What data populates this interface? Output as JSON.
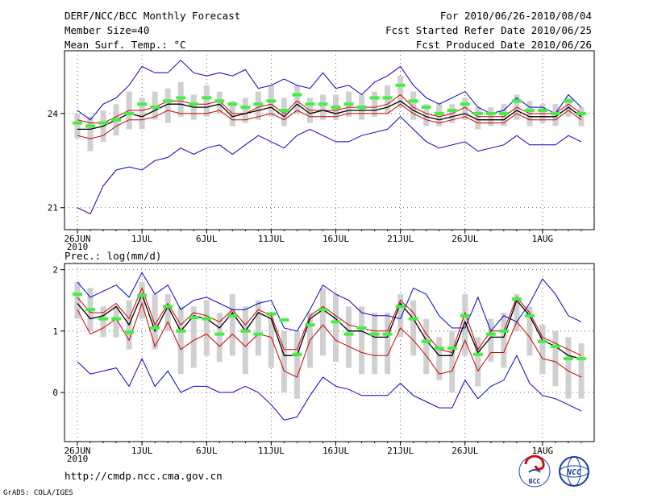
{
  "header": {
    "title": "DERF/NCC/BCC Monthly Forecast",
    "member_size": "Member Size=40",
    "variable": "Mean Surf. Temp.: °C",
    "period": "For 2010/06/26-2010/08/04",
    "started": "Fcst Started Refer Date 2010/06/25",
    "produced": "Fcst Produced Date 2010/06/26"
  },
  "footer": {
    "url": "http://cmdp.ncc.cma.gov.cn",
    "credit": "GrADS: COLA/IGES",
    "logo_bcc": "BCC",
    "logo_ncc": "NCC"
  },
  "colors": {
    "mean": "#000000",
    "upper": "#0000cc",
    "lower": "#0000cc",
    "lower_mid": "#cc0000",
    "upper_mid": "#cc0000",
    "box": "#d0d0d0",
    "marker": "#44ee44"
  },
  "chart_data": [
    {
      "type": "line",
      "title": "Mean Surf. Temp.: °C",
      "ylim": [
        20.3,
        26.0
      ],
      "yticks": [
        21,
        24
      ],
      "ytick_labels": [
        "21",
        "24"
      ],
      "day_count": 40,
      "xtick_labels": [
        {
          "day": 0,
          "label": "26JUN",
          "sub": "2010"
        },
        {
          "day": 5,
          "label": "1JUL"
        },
        {
          "day": 10,
          "label": "6JUL"
        },
        {
          "day": 15,
          "label": "11JUL"
        },
        {
          "day": 20,
          "label": "16JUL"
        },
        {
          "day": 25,
          "label": "21JUL"
        },
        {
          "day": 30,
          "label": "26JUL"
        },
        {
          "day": 36,
          "label": "1AUG"
        }
      ],
      "series": [
        {
          "name": "max",
          "color_key": "upper",
          "values": [
            24.1,
            23.8,
            24.3,
            24.5,
            24.9,
            25.5,
            25.3,
            25.3,
            25.7,
            25.3,
            25.2,
            25.3,
            25.2,
            25.4,
            24.8,
            24.9,
            25.1,
            24.9,
            24.8,
            25.3,
            24.8,
            24.9,
            24.6,
            25.0,
            25.2,
            25.5,
            24.9,
            24.5,
            24.3,
            24.5,
            24.7,
            24.2,
            24.0,
            24.1,
            24.5,
            24.2,
            24.2,
            24.0,
            24.6,
            24.2
          ]
        },
        {
          "name": "upper_mid",
          "color_key": "upper_mid",
          "values": [
            23.8,
            23.7,
            23.7,
            23.9,
            24.1,
            24.1,
            24.2,
            24.4,
            24.4,
            24.3,
            24.3,
            24.4,
            24.0,
            24.0,
            24.2,
            24.3,
            24.0,
            24.4,
            24.1,
            24.1,
            24.1,
            24.2,
            24.2,
            24.2,
            24.3,
            24.6,
            24.2,
            24.0,
            23.9,
            24.0,
            24.2,
            23.9,
            23.9,
            23.9,
            24.2,
            24.0,
            24.0,
            24.0,
            24.3,
            24.0
          ]
        },
        {
          "name": "mean",
          "color_key": "mean",
          "values": [
            23.5,
            23.5,
            23.6,
            23.8,
            24.0,
            23.9,
            24.1,
            24.3,
            24.3,
            24.2,
            24.2,
            24.3,
            23.9,
            24.0,
            24.1,
            24.2,
            23.9,
            24.3,
            24.0,
            24.1,
            24.0,
            24.1,
            24.1,
            24.1,
            24.2,
            24.4,
            24.1,
            23.9,
            23.8,
            23.9,
            24.0,
            23.8,
            23.8,
            23.8,
            24.1,
            23.9,
            23.9,
            23.9,
            24.2,
            23.9
          ]
        },
        {
          "name": "lower_mid",
          "color_key": "lower_mid",
          "values": [
            23.3,
            23.2,
            23.3,
            23.6,
            23.8,
            23.8,
            23.9,
            24.1,
            24.0,
            24.0,
            24.0,
            24.1,
            23.8,
            23.8,
            23.9,
            24.0,
            23.8,
            24.1,
            23.9,
            23.9,
            23.9,
            24.0,
            24.0,
            24.0,
            24.0,
            24.3,
            24.0,
            23.8,
            23.7,
            23.8,
            23.9,
            23.7,
            23.7,
            23.7,
            24.0,
            23.8,
            23.8,
            23.8,
            24.1,
            23.8
          ]
        },
        {
          "name": "min",
          "color_key": "lower",
          "values": [
            21.0,
            20.8,
            21.7,
            22.2,
            22.3,
            22.2,
            22.5,
            22.6,
            22.9,
            22.7,
            22.9,
            23.0,
            22.7,
            23.0,
            23.3,
            23.1,
            22.9,
            23.3,
            23.5,
            23.3,
            23.1,
            23.1,
            23.3,
            23.4,
            23.5,
            23.9,
            23.5,
            23.1,
            22.9,
            23.0,
            23.1,
            22.8,
            22.9,
            23.0,
            23.3,
            23.0,
            23.0,
            23.0,
            23.3,
            23.1
          ]
        }
      ],
      "markers": [
        23.7,
        23.6,
        23.7,
        23.8,
        24.0,
        24.3,
        24.2,
        24.4,
        24.5,
        24.3,
        24.5,
        24.4,
        24.3,
        24.2,
        24.3,
        24.4,
        24.1,
        24.6,
        24.3,
        24.3,
        24.2,
        24.3,
        24.2,
        24.5,
        24.5,
        24.9,
        24.4,
        24.2,
        24.0,
        24.1,
        24.3,
        24.0,
        24.0,
        24.0,
        24.4,
        24.1,
        24.1,
        24.0,
        24.4,
        24.0
      ],
      "boxes": [
        [
          23.2,
          24.0
        ],
        [
          22.8,
          23.9
        ],
        [
          23.1,
          24.1
        ],
        [
          23.3,
          24.3
        ],
        [
          23.5,
          24.7
        ],
        [
          23.5,
          24.5
        ],
        [
          23.8,
          24.7
        ],
        [
          23.7,
          24.8
        ],
        [
          23.9,
          25.0
        ],
        [
          23.8,
          24.6
        ],
        [
          23.9,
          24.9
        ],
        [
          24.0,
          24.7
        ],
        [
          23.6,
          24.4
        ],
        [
          23.7,
          24.5
        ],
        [
          23.8,
          24.7
        ],
        [
          23.9,
          24.9
        ],
        [
          23.6,
          24.5
        ],
        [
          24.0,
          24.9
        ],
        [
          23.7,
          24.5
        ],
        [
          23.8,
          24.6
        ],
        [
          23.8,
          24.6
        ],
        [
          23.9,
          24.7
        ],
        [
          23.8,
          24.6
        ],
        [
          23.9,
          24.7
        ],
        [
          24.0,
          24.9
        ],
        [
          24.2,
          25.2
        ],
        [
          23.8,
          24.7
        ],
        [
          23.6,
          24.3
        ],
        [
          23.6,
          24.3
        ],
        [
          23.7,
          24.3
        ],
        [
          23.8,
          24.5
        ],
        [
          23.5,
          24.2
        ],
        [
          23.6,
          24.2
        ],
        [
          23.6,
          24.3
        ],
        [
          23.8,
          24.6
        ],
        [
          23.6,
          24.4
        ],
        [
          23.7,
          24.3
        ],
        [
          23.6,
          24.3
        ],
        [
          23.9,
          24.5
        ],
        [
          23.6,
          24.2
        ]
      ]
    },
    {
      "type": "line",
      "title": "Prec.: log(mm/d)",
      "ylim": [
        -0.8,
        2.1
      ],
      "yticks": [
        0,
        1,
        2
      ],
      "ytick_labels": [
        "0",
        "1",
        "2"
      ],
      "day_count": 40,
      "xtick_labels": [
        {
          "day": 0,
          "label": "26JUN",
          "sub": "2010"
        },
        {
          "day": 5,
          "label": "1JUL"
        },
        {
          "day": 10,
          "label": "6JUL"
        },
        {
          "day": 15,
          "label": "11JUL"
        },
        {
          "day": 20,
          "label": "16JUL"
        },
        {
          "day": 25,
          "label": "21JUL"
        },
        {
          "day": 30,
          "label": "26JUL"
        },
        {
          "day": 36,
          "label": "1AUG"
        }
      ],
      "series": [
        {
          "name": "max",
          "color_key": "upper",
          "values": [
            1.8,
            1.55,
            1.65,
            1.75,
            1.55,
            1.95,
            1.6,
            1.75,
            1.35,
            1.5,
            1.55,
            1.45,
            1.35,
            1.35,
            1.45,
            1.5,
            1.05,
            1.0,
            1.35,
            1.75,
            1.6,
            1.5,
            1.3,
            1.25,
            1.25,
            1.2,
            1.7,
            1.6,
            1.25,
            1.05,
            1.05,
            1.55,
            1.0,
            1.25,
            1.15,
            1.45,
            1.85,
            1.6,
            1.25,
            1.15
          ]
        },
        {
          "name": "upper_mid",
          "color_key": "upper_mid",
          "values": [
            1.55,
            1.3,
            1.3,
            1.45,
            1.2,
            1.7,
            1.1,
            1.45,
            1.1,
            1.3,
            1.25,
            1.15,
            1.35,
            1.1,
            1.35,
            1.25,
            0.7,
            0.7,
            1.25,
            1.4,
            1.25,
            1.1,
            1.05,
            1.0,
            1.0,
            1.5,
            1.3,
            0.95,
            0.7,
            0.65,
            1.3,
            0.7,
            1.0,
            1.0,
            1.55,
            1.3,
            0.9,
            0.8,
            0.7,
            0.6
          ]
        },
        {
          "name": "mean",
          "color_key": "mean",
          "values": [
            1.45,
            1.2,
            1.25,
            1.4,
            1.1,
            1.6,
            1.0,
            1.4,
            1.0,
            1.25,
            1.2,
            1.05,
            1.3,
            1.0,
            1.3,
            1.2,
            0.6,
            0.6,
            1.2,
            1.35,
            1.2,
            1.0,
            1.0,
            0.9,
            0.9,
            1.45,
            1.2,
            0.85,
            0.6,
            0.6,
            1.15,
            0.65,
            0.9,
            0.9,
            1.5,
            1.25,
            0.85,
            0.75,
            0.6,
            0.55
          ]
        },
        {
          "name": "lower_mid",
          "color_key": "lower_mid",
          "values": [
            1.35,
            0.95,
            1.05,
            1.2,
            0.85,
            1.45,
            0.75,
            1.15,
            0.7,
            0.85,
            0.95,
            0.75,
            0.95,
            0.75,
            0.95,
            0.9,
            0.35,
            0.25,
            0.85,
            1.1,
            0.85,
            0.75,
            0.65,
            0.6,
            0.6,
            1.05,
            0.85,
            0.6,
            0.3,
            0.35,
            0.85,
            0.35,
            0.65,
            0.65,
            1.15,
            0.9,
            0.55,
            0.5,
            0.35,
            0.25
          ]
        },
        {
          "name": "min",
          "color_key": "lower",
          "values": [
            0.5,
            0.3,
            0.35,
            0.4,
            0.1,
            0.55,
            0.1,
            0.35,
            0.0,
            0.1,
            0.1,
            0.0,
            0.0,
            0.1,
            0.0,
            -0.2,
            -0.45,
            -0.4,
            -0.05,
            0.25,
            0.1,
            0.05,
            -0.05,
            -0.05,
            -0.05,
            0.15,
            -0.05,
            -0.15,
            -0.25,
            -0.25,
            0.2,
            -0.1,
            0.1,
            0.2,
            0.6,
            0.15,
            -0.05,
            -0.1,
            -0.2,
            -0.3
          ]
        }
      ],
      "markers": [
        1.6,
        1.35,
        1.2,
        1.2,
        0.98,
        1.58,
        1.05,
        1.4,
        1.0,
        1.22,
        1.2,
        0.95,
        1.25,
        1.0,
        0.95,
        1.28,
        1.18,
        0.62,
        1.1,
        1.35,
        1.15,
        0.95,
        1.05,
        0.95,
        0.95,
        1.4,
        1.2,
        0.83,
        0.72,
        0.72,
        1.25,
        0.62,
        0.95,
        1.0,
        1.52,
        1.25,
        0.83,
        0.75,
        0.55,
        0.55
      ],
      "boxes": [
        [
          1.2,
          1.8
        ],
        [
          1.0,
          1.7
        ],
        [
          0.9,
          1.4
        ],
        [
          0.9,
          1.4
        ],
        [
          0.7,
          1.5
        ],
        [
          1.2,
          1.8
        ],
        [
          0.7,
          1.6
        ],
        [
          1.0,
          1.6
        ],
        [
          0.3,
          1.4
        ],
        [
          0.4,
          1.4
        ],
        [
          0.6,
          1.5
        ],
        [
          0.5,
          1.3
        ],
        [
          0.6,
          1.6
        ],
        [
          0.3,
          1.4
        ],
        [
          0.6,
          1.5
        ],
        [
          0.4,
          1.3
        ],
        [
          0.0,
          1.0
        ],
        [
          -0.1,
          1.0
        ],
        [
          0.4,
          1.3
        ],
        [
          0.6,
          1.7
        ],
        [
          0.5,
          1.6
        ],
        [
          0.4,
          1.4
        ],
        [
          0.3,
          1.4
        ],
        [
          0.3,
          1.3
        ],
        [
          0.3,
          1.3
        ],
        [
          0.9,
          1.6
        ],
        [
          0.6,
          1.5
        ],
        [
          0.3,
          1.2
        ],
        [
          0.2,
          0.9
        ],
        [
          0.0,
          1.0
        ],
        [
          0.6,
          1.6
        ],
        [
          0.1,
          0.9
        ],
        [
          0.5,
          1.2
        ],
        [
          0.4,
          1.3
        ],
        [
          1.0,
          1.6
        ],
        [
          0.6,
          1.4
        ],
        [
          0.3,
          1.1
        ],
        [
          0.1,
          1.0
        ],
        [
          -0.1,
          0.9
        ],
        [
          -0.1,
          0.8
        ]
      ]
    }
  ]
}
